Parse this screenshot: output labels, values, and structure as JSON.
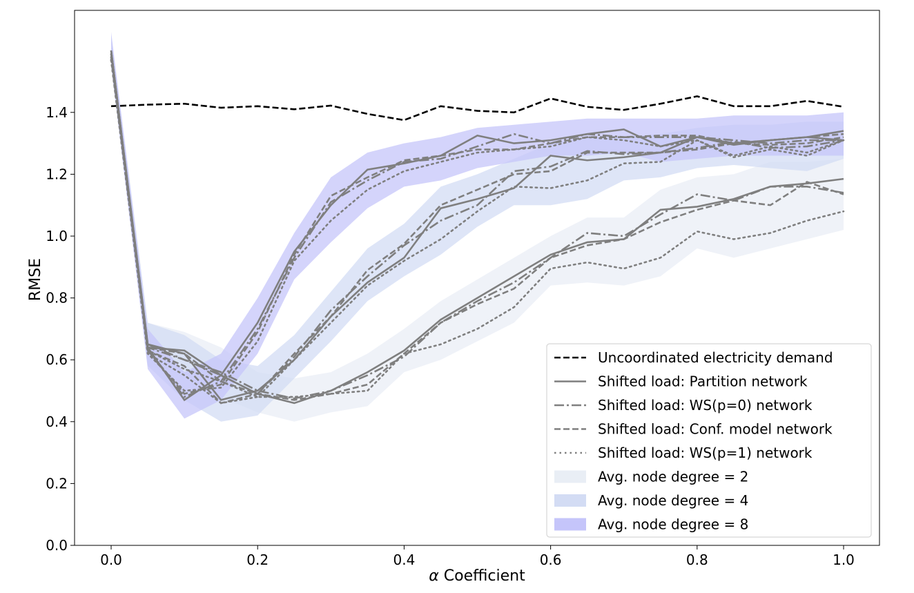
{
  "chart_data": {
    "type": "line",
    "title": "",
    "xlabel_symbol": "α",
    "xlabel": "Coefficient",
    "ylabel": "RMSE",
    "xlim": [
      -0.05,
      1.05
    ],
    "ylim": [
      0.0,
      1.75
    ],
    "xticks": [
      "0.0",
      "0.2",
      "0.4",
      "0.6",
      "0.8",
      "1.0"
    ],
    "yticks": [
      "0.0",
      "0.2",
      "0.4",
      "0.6",
      "0.8",
      "1.0",
      "1.2",
      "1.4"
    ],
    "grid": false,
    "legend_placement": "lower-right",
    "x": [
      0,
      0.05,
      0.1,
      0.15,
      0.2,
      0.25,
      0.3,
      0.35,
      0.4,
      0.45,
      0.5,
      0.55,
      0.6,
      0.65,
      0.7,
      0.75,
      0.8,
      0.85,
      0.9,
      0.95,
      1.0
    ],
    "bands": [
      {
        "name": "Avg. node degree = 2",
        "color": "#e9eef5",
        "lower": [
          1.55,
          0.58,
          0.55,
          0.48,
          0.43,
          0.4,
          0.43,
          0.45,
          0.56,
          0.6,
          0.66,
          0.72,
          0.84,
          0.85,
          0.84,
          0.87,
          0.96,
          0.93,
          0.96,
          0.99,
          1.02
        ],
        "upper": [
          1.65,
          0.72,
          0.69,
          0.64,
          0.56,
          0.54,
          0.56,
          0.62,
          0.7,
          0.79,
          0.86,
          0.93,
          1.0,
          1.06,
          1.06,
          1.15,
          1.19,
          1.2,
          1.24,
          1.24,
          1.25
        ]
      },
      {
        "name": "Avg. node degree = 4",
        "color": "#d3dcf4",
        "lower": [
          1.55,
          0.58,
          0.47,
          0.4,
          0.42,
          0.54,
          0.66,
          0.79,
          0.87,
          0.94,
          1.03,
          1.1,
          1.1,
          1.12,
          1.18,
          1.19,
          1.22,
          1.23,
          1.22,
          1.21,
          1.25
        ],
        "upper": [
          1.65,
          0.72,
          0.68,
          0.6,
          0.58,
          0.68,
          0.82,
          0.96,
          1.04,
          1.16,
          1.2,
          1.25,
          1.3,
          1.32,
          1.32,
          1.33,
          1.35,
          1.36,
          1.36,
          1.37,
          1.37
        ]
      },
      {
        "name": "Avg. node degree = 8",
        "color": "#c5c5fa",
        "lower": [
          1.55,
          0.57,
          0.41,
          0.47,
          0.62,
          0.86,
          0.98,
          1.09,
          1.16,
          1.18,
          1.22,
          1.24,
          1.26,
          1.26,
          1.27,
          1.24,
          1.25,
          1.26,
          1.26,
          1.26,
          1.26
        ],
        "upper": [
          1.66,
          0.7,
          0.56,
          0.62,
          0.8,
          1.01,
          1.19,
          1.27,
          1.3,
          1.32,
          1.35,
          1.36,
          1.37,
          1.38,
          1.38,
          1.38,
          1.38,
          1.39,
          1.39,
          1.39,
          1.4
        ]
      }
    ],
    "series": [
      {
        "name": "Uncoordinated electricity demand",
        "color": "#000000",
        "style": "dashed",
        "values": [
          1.42,
          1.425,
          1.428,
          1.415,
          1.42,
          1.41,
          1.422,
          1.395,
          1.375,
          1.42,
          1.405,
          1.4,
          1.445,
          1.418,
          1.408,
          1.428,
          1.452,
          1.42,
          1.42,
          1.437,
          1.418
        ]
      },
      {
        "name": "Shifted load: Partition network",
        "color": "#7f7f7f",
        "style": "solid",
        "groups": {
          "degree_2": [
            1.6,
            0.64,
            0.63,
            0.55,
            0.49,
            0.46,
            0.5,
            0.56,
            0.63,
            0.73,
            0.8,
            0.87,
            0.94,
            0.98,
            0.99,
            1.085,
            1.095,
            1.12,
            1.16,
            1.17,
            1.185
          ],
          "degree_4": [
            1.6,
            0.65,
            0.62,
            0.47,
            0.5,
            0.6,
            0.74,
            0.85,
            0.93,
            1.09,
            1.12,
            1.155,
            1.26,
            1.245,
            1.255,
            1.27,
            1.32,
            1.295,
            1.31,
            1.32,
            1.31
          ],
          "degree_8": [
            1.6,
            0.64,
            0.47,
            0.55,
            0.72,
            0.95,
            1.1,
            1.215,
            1.235,
            1.26,
            1.325,
            1.3,
            1.31,
            1.33,
            1.345,
            1.29,
            1.32,
            1.3,
            1.31,
            1.32,
            1.34
          ]
        }
      },
      {
        "name": "Shifted load: WS(p=0) network",
        "color": "#7f7f7f",
        "style": "dashdot",
        "groups": {
          "degree_2": [
            1.59,
            0.65,
            0.6,
            0.56,
            0.5,
            0.475,
            0.5,
            0.55,
            0.61,
            0.72,
            0.79,
            0.85,
            0.93,
            1.01,
            1.0,
            1.07,
            1.135,
            1.115,
            1.16,
            1.16,
            1.14
          ],
          "degree_4": [
            1.59,
            0.64,
            0.6,
            0.55,
            0.49,
            0.61,
            0.76,
            0.87,
            0.97,
            1.05,
            1.1,
            1.21,
            1.225,
            1.275,
            1.265,
            1.27,
            1.285,
            1.305,
            1.285,
            1.29,
            1.31
          ],
          "degree_8": [
            1.59,
            0.63,
            0.48,
            0.53,
            0.7,
            0.93,
            1.11,
            1.18,
            1.24,
            1.25,
            1.29,
            1.33,
            1.3,
            1.33,
            1.32,
            1.32,
            1.32,
            1.31,
            1.3,
            1.31,
            1.31
          ]
        }
      },
      {
        "name": "Shifted load: Conf. model network",
        "color": "#7f7f7f",
        "style": "dashed",
        "groups": {
          "degree_2": [
            1.58,
            0.64,
            0.62,
            0.53,
            0.49,
            0.47,
            0.49,
            0.52,
            0.62,
            0.72,
            0.78,
            0.83,
            0.93,
            0.97,
            0.99,
            1.045,
            1.085,
            1.115,
            1.1,
            1.175,
            1.135
          ],
          "degree_4": [
            1.58,
            0.63,
            0.58,
            0.46,
            0.49,
            0.62,
            0.74,
            0.89,
            0.975,
            1.1,
            1.15,
            1.2,
            1.21,
            1.27,
            1.27,
            1.27,
            1.28,
            1.3,
            1.295,
            1.3,
            1.32
          ],
          "degree_8": [
            1.58,
            0.63,
            0.49,
            0.52,
            0.69,
            0.94,
            1.13,
            1.19,
            1.245,
            1.26,
            1.28,
            1.28,
            1.3,
            1.32,
            1.32,
            1.325,
            1.325,
            1.3,
            1.31,
            1.32,
            1.33
          ]
        }
      },
      {
        "name": "Shifted load: WS(p=1) network",
        "color": "#7f7f7f",
        "style": "dotted",
        "groups": {
          "degree_2": [
            1.57,
            0.63,
            0.57,
            0.53,
            0.48,
            0.48,
            0.49,
            0.5,
            0.62,
            0.65,
            0.7,
            0.77,
            0.895,
            0.915,
            0.895,
            0.93,
            1.015,
            0.99,
            1.01,
            1.05,
            1.08
          ],
          "degree_4": [
            1.57,
            0.62,
            0.55,
            0.46,
            0.48,
            0.6,
            0.72,
            0.84,
            0.92,
            0.99,
            1.08,
            1.16,
            1.155,
            1.18,
            1.235,
            1.24,
            1.31,
            1.255,
            1.28,
            1.26,
            1.31
          ],
          "degree_8": [
            1.57,
            0.62,
            0.5,
            0.51,
            0.66,
            0.92,
            1.05,
            1.15,
            1.21,
            1.24,
            1.27,
            1.28,
            1.29,
            1.32,
            1.31,
            1.29,
            1.31,
            1.26,
            1.29,
            1.27,
            1.31
          ]
        }
      }
    ]
  }
}
